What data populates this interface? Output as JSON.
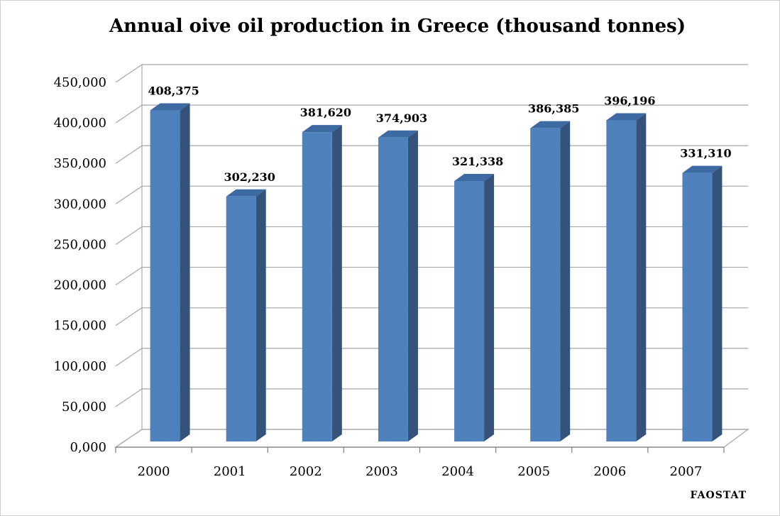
{
  "chart_data": {
    "type": "bar",
    "title": "Annual oive oil production in Greece (thousand tonnes)",
    "categories": [
      "2000",
      "2001",
      "2002",
      "2003",
      "2004",
      "2005",
      "2006",
      "2007"
    ],
    "values": [
      408.375,
      302.23,
      381.62,
      374.903,
      321.338,
      386.385,
      396.196,
      331.31
    ],
    "data_labels": [
      "408,375",
      "302,230",
      "381,620",
      "374,903",
      "321,338",
      "386,385",
      "396,196",
      "331,310"
    ],
    "ylim": [
      0,
      450
    ],
    "yticks": [
      0,
      50,
      100,
      150,
      200,
      250,
      300,
      350,
      400,
      450
    ],
    "ytick_labels": [
      "0,000",
      "50,000",
      "100,000",
      "150,000",
      "200,000",
      "250,000",
      "300,000",
      "350,000",
      "400,000",
      "450,000"
    ],
    "xlabel": "",
    "ylabel": "",
    "grid": true,
    "legend": "none",
    "style": "3d-column",
    "colors": {
      "bar_front": "#4f81bd",
      "bar_side": "#34527a",
      "bar_top": "#3e6aa3",
      "grid": "#a6a6a6"
    },
    "source": "FAOSTAT"
  }
}
